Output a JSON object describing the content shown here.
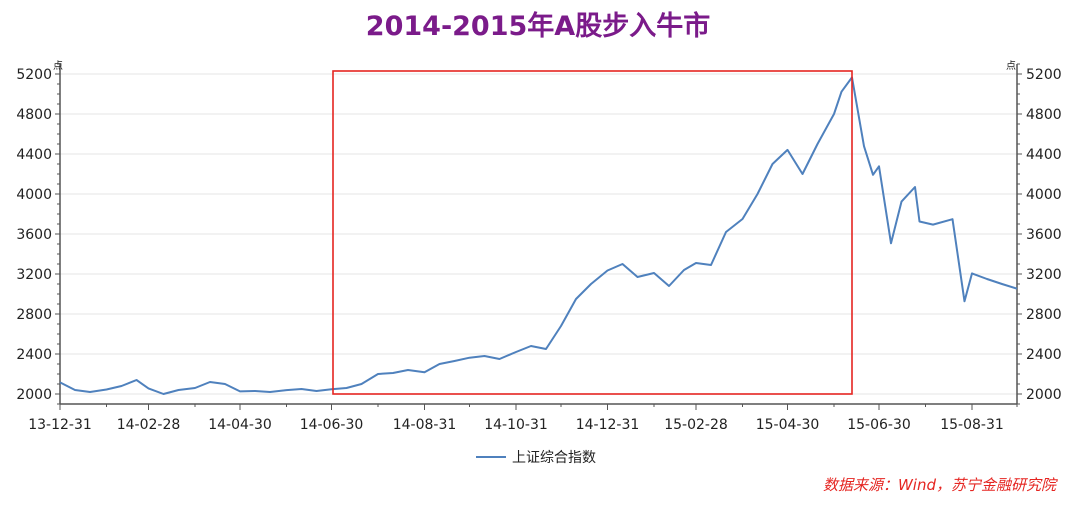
{
  "colors": {
    "title": "#7B1B8A",
    "line": "#4F81BD",
    "highlight_box": "#E52521",
    "axis": "#555555",
    "grid": "#E6E6E6",
    "text": "#222222",
    "source": "#E52521"
  },
  "title": "2014-2015年A股步入牛市",
  "source_note": "数据来源：Wind，苏宁金融研究院",
  "chart_data": {
    "type": "line",
    "title": "2014-2015年A股步入牛市",
    "xlabel": "",
    "ylabel": "点",
    "ylim": [
      1900,
      5300
    ],
    "y_ticks": [
      2000,
      2400,
      2800,
      3200,
      3600,
      4000,
      4400,
      4800,
      5200
    ],
    "x_tick_labels": [
      "13-12-31",
      "14-02-28",
      "14-04-30",
      "14-06-30",
      "14-08-31",
      "14-10-31",
      "14-12-31",
      "15-02-28",
      "15-04-30",
      "15-06-30",
      "15-08-31"
    ],
    "x_ticks": [
      "2013-12-31",
      "2014-02-28",
      "2014-04-30",
      "2014-06-30",
      "2014-08-31",
      "2014-10-31",
      "2014-12-31",
      "2015-02-28",
      "2015-04-30",
      "2015-06-30",
      "2015-08-31"
    ],
    "xlim": [
      "2013-12-31",
      "2015-09-30"
    ],
    "grid": true,
    "legend_position": "bottom",
    "highlight_box": {
      "x_start": "2014-07-01",
      "x_end": "2015-06-12",
      "y_start": 2000,
      "y_end": 5230
    },
    "series": [
      {
        "name": "上证综合指数",
        "x": [
          "2013-12-31",
          "2014-01-10",
          "2014-01-20",
          "2014-01-31",
          "2014-02-10",
          "2014-02-20",
          "2014-02-28",
          "2014-03-10",
          "2014-03-20",
          "2014-03-31",
          "2014-04-10",
          "2014-04-20",
          "2014-04-30",
          "2014-05-10",
          "2014-05-20",
          "2014-05-31",
          "2014-06-10",
          "2014-06-20",
          "2014-06-30",
          "2014-07-10",
          "2014-07-20",
          "2014-07-31",
          "2014-08-10",
          "2014-08-20",
          "2014-08-31",
          "2014-09-10",
          "2014-09-20",
          "2014-09-30",
          "2014-10-10",
          "2014-10-20",
          "2014-10-31",
          "2014-11-10",
          "2014-11-20",
          "2014-11-30",
          "2014-12-10",
          "2014-12-20",
          "2014-12-31",
          "2015-01-10",
          "2015-01-20",
          "2015-01-31",
          "2015-02-10",
          "2015-02-20",
          "2015-02-28",
          "2015-03-10",
          "2015-03-20",
          "2015-03-31",
          "2015-04-10",
          "2015-04-20",
          "2015-04-30",
          "2015-05-10",
          "2015-05-20",
          "2015-05-31",
          "2015-06-05",
          "2015-06-12",
          "2015-06-20",
          "2015-06-26",
          "2015-06-30",
          "2015-07-08",
          "2015-07-15",
          "2015-07-24",
          "2015-07-27",
          "2015-08-05",
          "2015-08-18",
          "2015-08-26",
          "2015-08-31",
          "2015-09-10",
          "2015-09-20",
          "2015-09-30"
        ],
        "values": [
          2116,
          2040,
          2020,
          2045,
          2080,
          2140,
          2056,
          2000,
          2040,
          2060,
          2120,
          2100,
          2026,
          2030,
          2020,
          2039,
          2050,
          2030,
          2048,
          2060,
          2100,
          2200,
          2210,
          2240,
          2217,
          2300,
          2330,
          2363,
          2380,
          2350,
          2420,
          2480,
          2450,
          2680,
          2950,
          3100,
          3235,
          3300,
          3170,
          3210,
          3080,
          3240,
          3310,
          3290,
          3620,
          3750,
          4000,
          4300,
          4441,
          4200,
          4500,
          4800,
          5023,
          5166,
          4478,
          4192,
          4277,
          3507,
          3924,
          4070,
          3725,
          3694,
          3748,
          2927,
          3206,
          3150,
          3100,
          3053
        ]
      }
    ]
  }
}
